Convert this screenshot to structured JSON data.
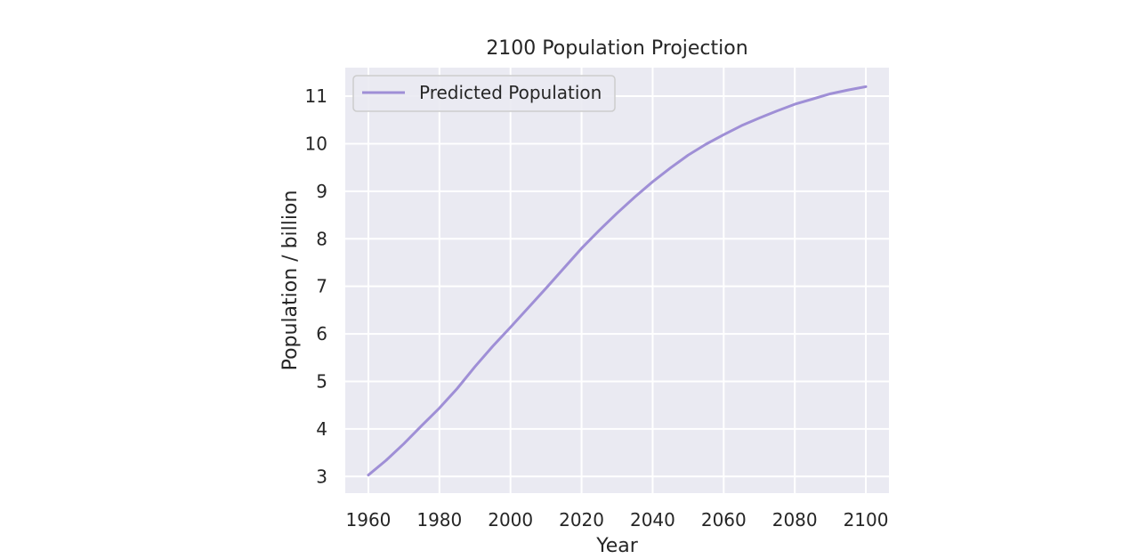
{
  "chart_data": {
    "type": "line",
    "title": "2100 Population Projection",
    "xlabel": "Year",
    "ylabel": "Population / billion",
    "xlim": [
      1953.5,
      2106.5
    ],
    "ylim": [
      2.65,
      11.6
    ],
    "xticks": [
      1960,
      1980,
      2000,
      2020,
      2040,
      2060,
      2080,
      2100
    ],
    "yticks": [
      3,
      4,
      5,
      6,
      7,
      8,
      9,
      10,
      11
    ],
    "grid": true,
    "legend_position": "top-left",
    "series": [
      {
        "name": "Predicted Population",
        "color": "#9f8fd6",
        "x": [
          1960,
          1965,
          1970,
          1975,
          1980,
          1985,
          1990,
          1995,
          2000,
          2005,
          2010,
          2015,
          2020,
          2025,
          2030,
          2035,
          2040,
          2045,
          2050,
          2055,
          2060,
          2065,
          2070,
          2075,
          2080,
          2085,
          2090,
          2095,
          2100
        ],
        "y": [
          3.03,
          3.34,
          3.69,
          4.07,
          4.44,
          4.85,
          5.31,
          5.74,
          6.14,
          6.55,
          6.96,
          7.38,
          7.8,
          8.18,
          8.54,
          8.88,
          9.2,
          9.49,
          9.76,
          9.99,
          10.19,
          10.38,
          10.54,
          10.69,
          10.83,
          10.94,
          11.05,
          11.13,
          11.2
        ]
      }
    ]
  },
  "style": {
    "plot_background": "#eaeaf2",
    "grid_color": "#ffffff",
    "text_color": "#262626",
    "legend_border": "#cccccc"
  }
}
